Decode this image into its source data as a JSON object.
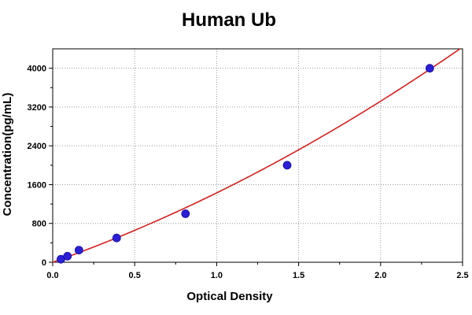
{
  "chart_data": {
    "type": "scatter",
    "title": "Human Ub",
    "xlabel": "Optical Density",
    "ylabel": "Concentration(pg/mL)",
    "xlim": [
      0,
      2.5
    ],
    "ylim": [
      0,
      4400
    ],
    "xticks": [
      "0.0",
      "0.5",
      "1.0",
      "1.5",
      "2.0",
      "2.5"
    ],
    "yticks": [
      "0",
      "800",
      "1600",
      "2400",
      "3200",
      "4000"
    ],
    "grid": true,
    "series": [
      {
        "kind": "points",
        "color": "#2b1fd6",
        "x": [
          0.05,
          0.09,
          0.16,
          0.39,
          0.81,
          1.43,
          2.3
        ],
        "y": [
          62,
          125,
          250,
          500,
          1000,
          2000,
          4000
        ]
      },
      {
        "kind": "fit-curve",
        "color": "#d42020",
        "fit": {
          "a": 0,
          "b": 1200,
          "c": 230
        }
      }
    ]
  }
}
